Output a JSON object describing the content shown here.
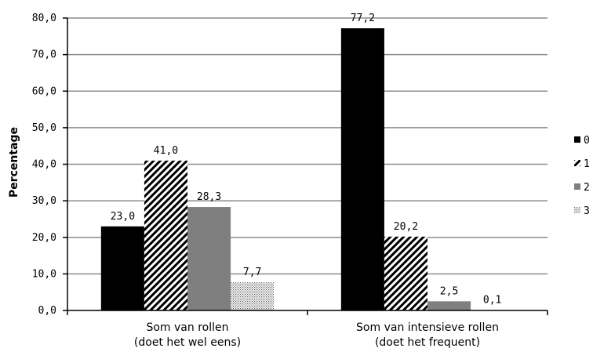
{
  "chart_data": {
    "type": "bar",
    "title": "",
    "xlabel": "",
    "ylabel": "Percentage",
    "ylim": [
      0,
      80
    ],
    "y_ticks": [
      "0,0",
      "10,0",
      "20,0",
      "30,0",
      "40,0",
      "50,0",
      "60,0",
      "70,0",
      "80,0"
    ],
    "categories": [
      [
        "Som van rollen",
        "(doet het wel eens)"
      ],
      [
        "Som van intensieve rollen",
        "(doet het frequent)"
      ]
    ],
    "series": [
      {
        "name": "0",
        "values": [
          23.0,
          77.2
        ],
        "labels": [
          "23,0",
          "77,2"
        ],
        "pattern": "solid-black"
      },
      {
        "name": "1",
        "values": [
          41.0,
          20.2
        ],
        "labels": [
          "41,0",
          "20,2"
        ],
        "pattern": "diagonal-hatch"
      },
      {
        "name": "2",
        "values": [
          28.3,
          2.5
        ],
        "labels": [
          "28,3",
          "2,5"
        ],
        "pattern": "solid-gray"
      },
      {
        "name": "3",
        "values": [
          7.7,
          0.1
        ],
        "labels": [
          "7,7",
          "0,1"
        ],
        "pattern": "dotted"
      }
    ],
    "grid": true,
    "legend": "right",
    "colors": {
      "black": "#000000",
      "gray": "#7f7f7f",
      "gridline": "#8c8c8c"
    }
  }
}
